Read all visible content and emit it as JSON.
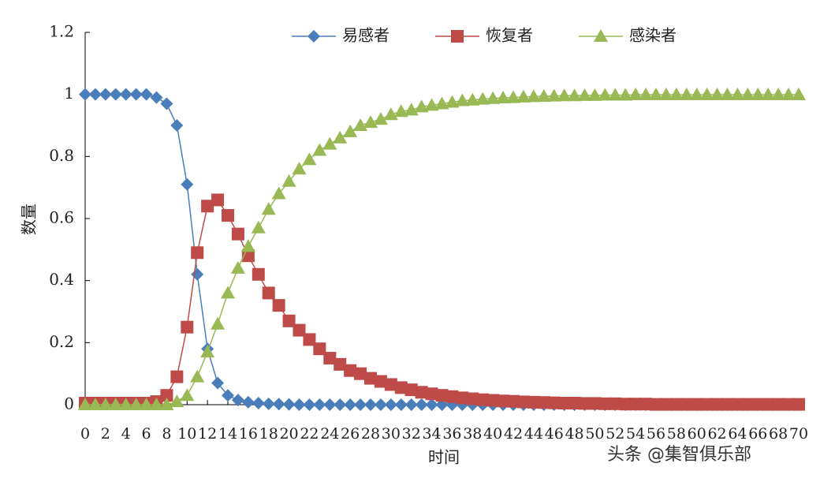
{
  "chart_data": {
    "type": "line",
    "xlabel": "时间",
    "ylabel": "数量",
    "watermark": "头条 @集智俱乐部",
    "x": [
      0,
      1,
      2,
      3,
      4,
      5,
      6,
      7,
      8,
      9,
      10,
      11,
      12,
      13,
      14,
      15,
      16,
      17,
      18,
      19,
      20,
      21,
      22,
      23,
      24,
      25,
      26,
      27,
      28,
      29,
      30,
      31,
      32,
      33,
      34,
      35,
      36,
      37,
      38,
      39,
      40,
      41,
      42,
      43,
      44,
      45,
      46,
      47,
      48,
      49,
      50,
      51,
      52,
      53,
      54,
      55,
      56,
      57,
      58,
      59,
      60,
      61,
      62,
      63,
      64,
      65,
      66,
      67,
      68,
      69,
      70
    ],
    "series": [
      {
        "name": "易感者",
        "color": "#4a7ebb",
        "marker": "diamond",
        "values": [
          1,
          1,
          1,
          1,
          1,
          1,
          1,
          0.99,
          0.97,
          0.9,
          0.71,
          0.42,
          0.18,
          0.07,
          0.03,
          0.015,
          0.008,
          0.005,
          0.003,
          0.002,
          0.001,
          0,
          0,
          0,
          0,
          0,
          0,
          0,
          0,
          0,
          0,
          0,
          0,
          0,
          0,
          0,
          0,
          0,
          0,
          0,
          0,
          0,
          0,
          0,
          0,
          0,
          0,
          0,
          0,
          0,
          0,
          0,
          0,
          0,
          0,
          0,
          0,
          0,
          0,
          0,
          0,
          0,
          0,
          0,
          0,
          0,
          0,
          0,
          0,
          0,
          0
        ]
      },
      {
        "name": "恢复者",
        "color": "#be4b48",
        "marker": "square",
        "values": [
          0.005,
          0.005,
          0.005,
          0.005,
          0.005,
          0.005,
          0.005,
          0.01,
          0.03,
          0.09,
          0.25,
          0.49,
          0.64,
          0.66,
          0.61,
          0.55,
          0.48,
          0.42,
          0.36,
          0.32,
          0.27,
          0.24,
          0.21,
          0.18,
          0.15,
          0.13,
          0.11,
          0.1,
          0.085,
          0.075,
          0.065,
          0.055,
          0.048,
          0.04,
          0.035,
          0.03,
          0.026,
          0.022,
          0.019,
          0.016,
          0.014,
          0.012,
          0.011,
          0.009,
          0.008,
          0.007,
          0.006,
          0.005,
          0.005,
          0.004,
          0.004,
          0.003,
          0.003,
          0.002,
          0.002,
          0.002,
          0.001,
          0.001,
          0.001,
          0.001,
          0.001,
          0.001,
          0.001,
          0.001,
          0.001,
          0.001,
          0.001,
          0.001,
          0.001,
          0.001,
          0.001
        ]
      },
      {
        "name": "感染者",
        "color": "#98b954",
        "marker": "triangle",
        "values": [
          0,
          0,
          0,
          0,
          0,
          0,
          0,
          0,
          0,
          0.01,
          0.03,
          0.09,
          0.17,
          0.26,
          0.36,
          0.44,
          0.51,
          0.57,
          0.63,
          0.68,
          0.72,
          0.76,
          0.79,
          0.82,
          0.84,
          0.86,
          0.88,
          0.9,
          0.91,
          0.92,
          0.935,
          0.945,
          0.95,
          0.96,
          0.965,
          0.97,
          0.975,
          0.98,
          0.982,
          0.985,
          0.987,
          0.989,
          0.99,
          0.992,
          0.993,
          0.994,
          0.995,
          0.996,
          0.996,
          0.997,
          0.997,
          0.998,
          0.998,
          0.998,
          0.999,
          0.999,
          0.999,
          0.999,
          0.999,
          0.999,
          0.999,
          0.999,
          0.999,
          0.999,
          0.999,
          0.999,
          0.999,
          0.999,
          0.999,
          0.999,
          0.999
        ]
      }
    ],
    "xlim": [
      0,
      70
    ],
    "xticks": [
      0,
      2,
      4,
      6,
      8,
      10,
      12,
      14,
      16,
      18,
      20,
      22,
      24,
      26,
      28,
      30,
      32,
      34,
      36,
      38,
      40,
      42,
      44,
      46,
      48,
      50,
      52,
      54,
      56,
      58,
      60,
      62,
      64,
      66,
      68,
      70
    ],
    "ylim": [
      0,
      1.2
    ],
    "yticks": [
      0,
      0.2,
      0.4,
      0.6,
      0.8,
      1,
      1.2
    ],
    "grid": false
  }
}
